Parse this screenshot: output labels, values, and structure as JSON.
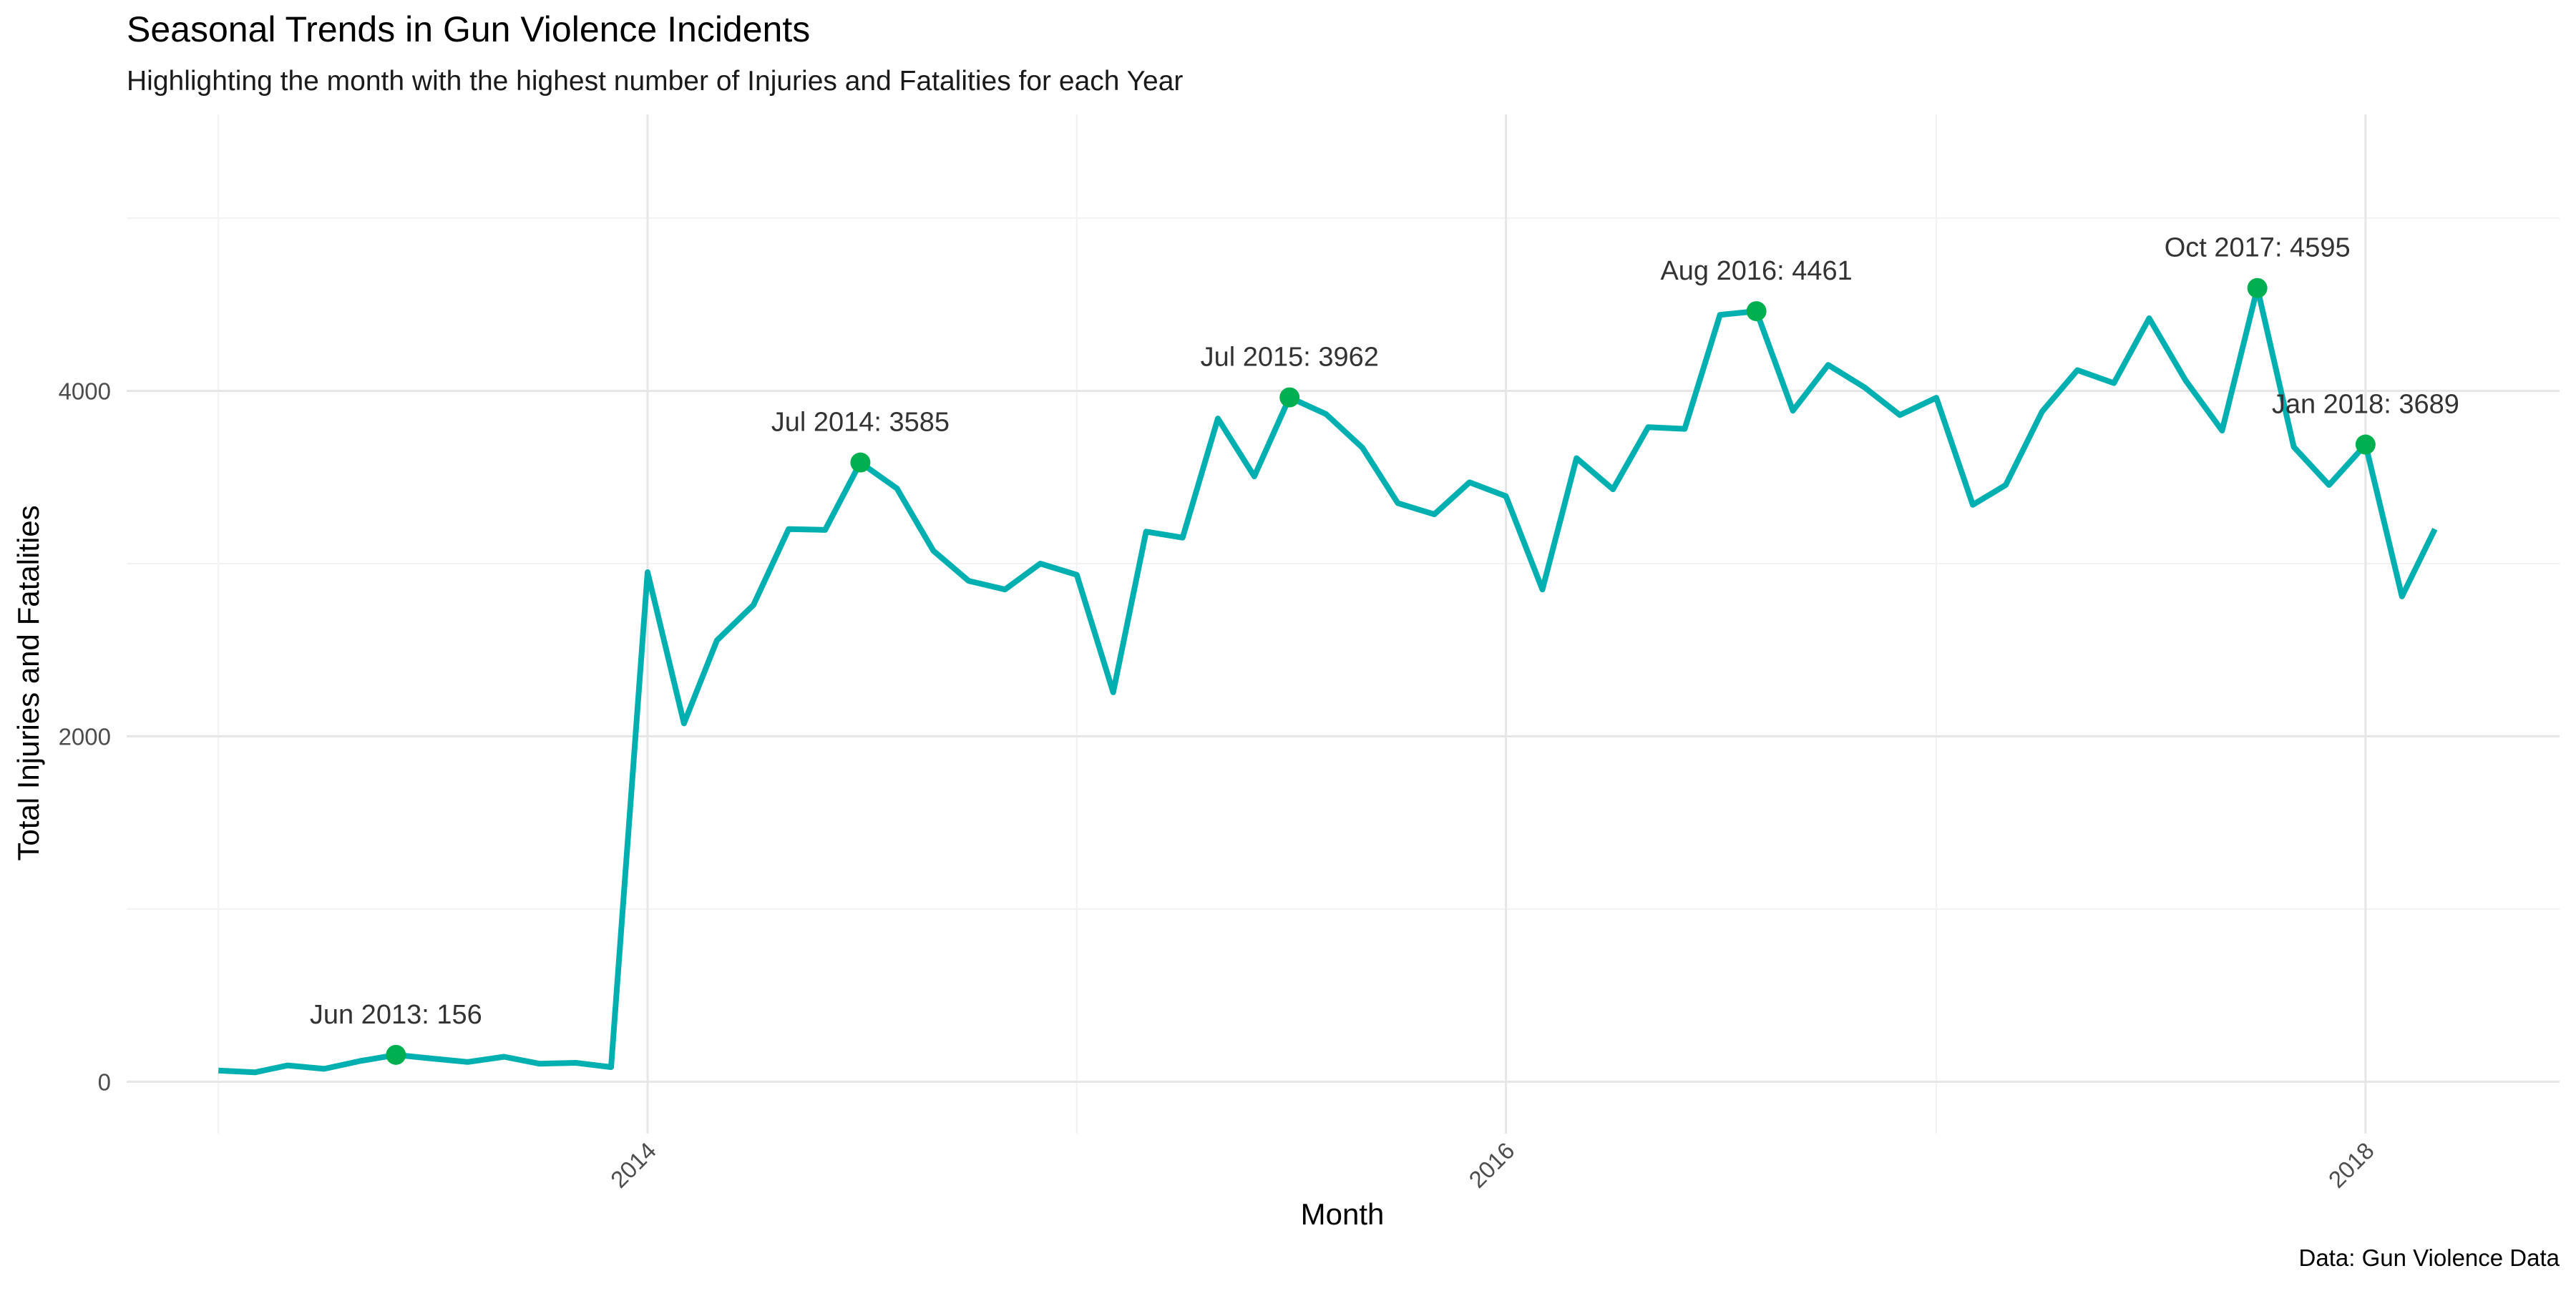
{
  "chart_data": {
    "type": "line",
    "title": "Seasonal Trends in Gun Violence Incidents",
    "subtitle": "Highlighting the month with the highest number of Injuries and Fatalities for each Year",
    "xlabel": "Month",
    "ylabel": "Total Injuries and Fatalities",
    "caption": "Data: Gun Violence Data",
    "xlim": [
      "2012-10-15",
      "2018-06-15"
    ],
    "ylim": [
      -300,
      5600
    ],
    "x_ticks": [
      {
        "date": "2014-01-01",
        "label": "2014"
      },
      {
        "date": "2016-01-01",
        "label": "2016"
      },
      {
        "date": "2018-01-01",
        "label": "2018"
      }
    ],
    "x_minor_gridlines": [
      "2013-01-01",
      "2015-01-01",
      "2017-01-01"
    ],
    "y_ticks": [
      {
        "value": 0,
        "label": "0"
      },
      {
        "value": 2000,
        "label": "2000"
      },
      {
        "value": 4000,
        "label": "4000"
      }
    ],
    "y_minor_gridlines": [
      1000,
      3000,
      5000
    ],
    "grid": true,
    "line_color": "#00B0B0",
    "highlight_color": "#00B050",
    "series": [
      {
        "x": [
          "2013-01-01",
          "2013-02-01",
          "2013-03-01",
          "2013-04-01",
          "2013-05-01",
          "2013-06-01",
          "2013-07-01",
          "2013-08-01",
          "2013-09-01",
          "2013-10-01",
          "2013-11-01",
          "2013-12-01",
          "2014-01-01",
          "2014-02-01",
          "2014-03-01",
          "2014-04-01",
          "2014-05-01",
          "2014-06-01",
          "2014-07-01",
          "2014-08-01",
          "2014-09-01",
          "2014-10-01",
          "2014-11-01",
          "2014-12-01",
          "2015-01-01",
          "2015-02-01",
          "2015-03-01",
          "2015-04-01",
          "2015-05-01",
          "2015-06-01",
          "2015-07-01",
          "2015-08-01",
          "2015-09-01",
          "2015-10-01",
          "2015-11-01",
          "2015-12-01",
          "2016-01-01",
          "2016-02-01",
          "2016-03-01",
          "2016-04-01",
          "2016-05-01",
          "2016-06-01",
          "2016-07-01",
          "2016-08-01",
          "2016-09-01",
          "2016-10-01",
          "2016-11-01",
          "2016-12-01",
          "2017-01-01",
          "2017-02-01",
          "2017-03-01",
          "2017-04-01",
          "2017-05-01",
          "2017-06-01",
          "2017-07-01",
          "2017-08-01",
          "2017-09-01",
          "2017-10-01",
          "2017-11-01",
          "2017-12-01",
          "2018-01-01",
          "2018-02-01",
          "2018-03-01"
        ],
        "values": [
          65,
          55,
          95,
          75,
          120,
          156,
          135,
          115,
          145,
          105,
          110,
          85,
          2950,
          2075,
          2555,
          2760,
          3200,
          3195,
          3585,
          3435,
          3075,
          2900,
          2850,
          3000,
          2935,
          2255,
          3185,
          3150,
          3840,
          3505,
          3962,
          3865,
          3670,
          3350,
          3285,
          3470,
          3390,
          2850,
          3610,
          3430,
          3790,
          3780,
          4440,
          4461,
          3885,
          4150,
          4020,
          3860,
          3960,
          3340,
          3455,
          3880,
          4120,
          4045,
          4420,
          4060,
          3770,
          4595,
          3675,
          3455,
          3689,
          2810,
          3200
        ]
      }
    ],
    "highlights": [
      {
        "date": "2013-06-01",
        "value": 156,
        "label": "Jun 2013: 156"
      },
      {
        "date": "2014-07-01",
        "value": 3585,
        "label": "Jul 2014: 3585"
      },
      {
        "date": "2015-07-01",
        "value": 3962,
        "label": "Jul 2015: 3962"
      },
      {
        "date": "2016-08-01",
        "value": 4461,
        "label": "Aug 2016: 4461"
      },
      {
        "date": "2017-10-01",
        "value": 4595,
        "label": "Oct 2017: 4595"
      },
      {
        "date": "2018-01-01",
        "value": 3689,
        "label": "Jan 2018: 3689"
      }
    ]
  }
}
